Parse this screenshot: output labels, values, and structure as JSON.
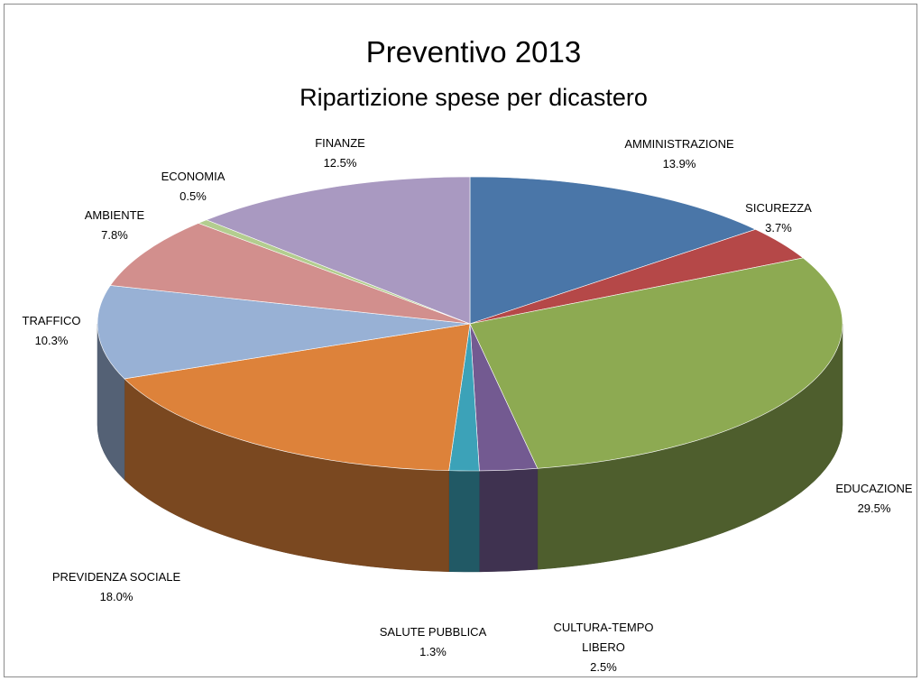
{
  "chart_data": {
    "type": "pie",
    "title": "Preventivo 2013",
    "subtitle": "Ripartizione spese per dicastero",
    "slices": [
      {
        "label": [
          "AMMINISTRAZIONE"
        ],
        "value": 13.9,
        "display": "13.9%",
        "color": "#4a76a8"
      },
      {
        "label": [
          "SICUREZZA"
        ],
        "value": 3.7,
        "display": "3.7%",
        "color": "#b54848"
      },
      {
        "label": [
          "EDUCAZIONE"
        ],
        "value": 29.5,
        "display": "29.5%",
        "color": "#8daa52"
      },
      {
        "label": [
          "CULTURA-TEMPO",
          "LIBERO"
        ],
        "value": 2.5,
        "display": "2.5%",
        "color": "#735a91"
      },
      {
        "label": [
          "SALUTE PUBBLICA"
        ],
        "value": 1.3,
        "display": "1.3%",
        "color": "#3ca2b8"
      },
      {
        "label": [
          "PREVIDENZA SOCIALE"
        ],
        "value": 18.0,
        "display": "18.0%",
        "color": "#dd823a"
      },
      {
        "label": [
          "TRAFFICO"
        ],
        "value": 10.3,
        "display": "10.3%",
        "color": "#98b1d5"
      },
      {
        "label": [
          "AMBIENTE"
        ],
        "value": 7.8,
        "display": "7.8%",
        "color": "#d28f8d"
      },
      {
        "label": [
          "ECONOMIA"
        ],
        "value": 0.5,
        "display": "0.5%",
        "color": "#b3cd8f"
      },
      {
        "label": [
          "FINANZE"
        ],
        "value": 12.5,
        "display": "12.5%",
        "color": "#a999c1"
      }
    ],
    "style": "3d",
    "legend": "none"
  }
}
